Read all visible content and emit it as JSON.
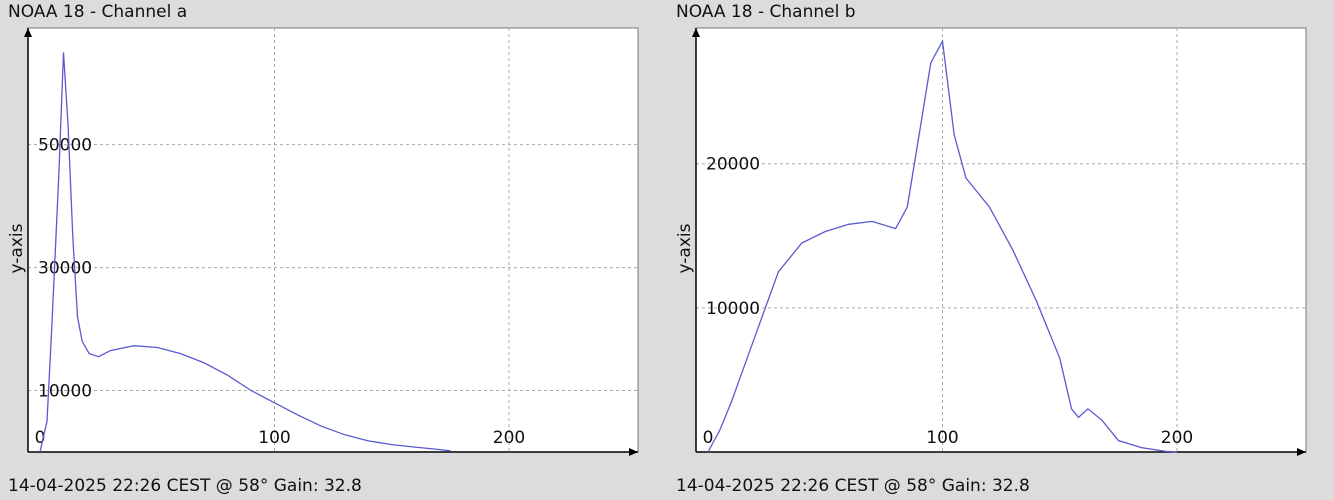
{
  "panels": [
    {
      "title": "NOAA 18 - Channel a",
      "footer": "14-04-2025 22:26 CEST @ 58° Gain: 32.8"
    },
    {
      "title": "NOAA 18 - Channel b",
      "footer": "14-04-2025 22:26 CEST @ 58° Gain: 32.8"
    }
  ],
  "colors": {
    "line": "#5a5ad0",
    "grid": "#aaaaaa",
    "axis": "#000000",
    "plot_bg": "#ffffff"
  },
  "chart_data": [
    {
      "type": "line",
      "ylabel": "y-axis",
      "xlim": [
        0,
        255
      ],
      "ylim": [
        0,
        68000
      ],
      "grid": true,
      "x_ticks": [
        0,
        100,
        200
      ],
      "y_ticks": [
        10000,
        30000,
        50000
      ],
      "series": [
        {
          "x": [
            0,
            3,
            5,
            8,
            10,
            12,
            14,
            16,
            18,
            21,
            25,
            30,
            40,
            50,
            60,
            70,
            80,
            90,
            100,
            110,
            120,
            130,
            140,
            150,
            160,
            170,
            175
          ],
          "y": [
            0,
            5000,
            20000,
            45000,
            65000,
            53000,
            35000,
            22000,
            18000,
            16000,
            15500,
            16500,
            17300,
            17000,
            16000,
            14500,
            12500,
            10000,
            8000,
            6000,
            4200,
            2800,
            1800,
            1200,
            800,
            400,
            200
          ]
        }
      ]
    },
    {
      "type": "line",
      "ylabel": "y-axis",
      "xlim": [
        0,
        255
      ],
      "ylim": [
        0,
        29000
      ],
      "grid": true,
      "x_ticks": [
        0,
        100,
        200
      ],
      "y_ticks": [
        10000,
        20000
      ],
      "series": [
        {
          "x": [
            0,
            5,
            10,
            20,
            30,
            40,
            50,
            60,
            70,
            80,
            85,
            90,
            95,
            100,
            105,
            110,
            120,
            130,
            140,
            150,
            155,
            158,
            162,
            168,
            175,
            185,
            195,
            200
          ],
          "y": [
            0,
            1500,
            3500,
            8000,
            12500,
            14500,
            15300,
            15800,
            16000,
            15500,
            17000,
            22000,
            27000,
            28500,
            22000,
            19000,
            17000,
            14000,
            10500,
            6500,
            3000,
            2400,
            3000,
            2200,
            800,
            300,
            50,
            0
          ]
        }
      ]
    }
  ]
}
